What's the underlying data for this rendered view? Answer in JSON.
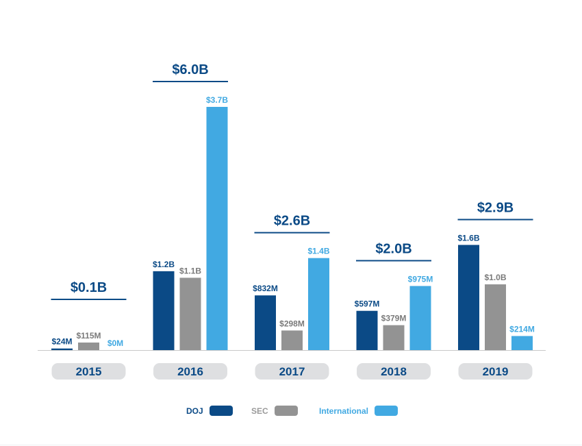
{
  "chart_data": {
    "type": "bar",
    "categories": [
      "2015",
      "2016",
      "2017",
      "2018",
      "2019"
    ],
    "series": [
      {
        "name": "DOJ",
        "color": "#0b4a86",
        "values": [
          24,
          1200,
          832,
          597,
          1600
        ],
        "labels": [
          "$24M",
          "$1.2B",
          "$832M",
          "$597M",
          "$1.6B"
        ]
      },
      {
        "name": "SEC",
        "color": "#939393",
        "values": [
          115,
          1100,
          298,
          379,
          1000
        ],
        "labels": [
          "$115M",
          "$1.1B",
          "$298M",
          "$379M",
          "$1.0B"
        ]
      },
      {
        "name": "International",
        "color": "#41a9e2",
        "values": [
          0,
          3700,
          1400,
          975,
          214
        ],
        "labels": [
          "$0M",
          "$3.7B",
          "$1.4B",
          "$975M",
          "$214M"
        ]
      }
    ],
    "totals": [
      "$0.1B",
      "$6.0B",
      "$2.6B",
      "$2.0B",
      "$2.9B"
    ],
    "total_values": [
      0.1,
      6.0,
      2.6,
      2.0,
      2.9
    ],
    "unit": "$M",
    "ylim": [
      0,
      3700
    ],
    "grid": false,
    "legend_position": "bottom-center",
    "title": "",
    "xlabel": "",
    "ylabel": ""
  },
  "colors": {
    "total_text": "#0b4a86",
    "total_underline": "#0b4a86",
    "category_pill": "#dedfe1",
    "category_text": "#0b4a86",
    "baseline": "#c8c8c8"
  },
  "legend": {
    "items": [
      {
        "label": "DOJ",
        "color": "#0b4a86"
      },
      {
        "label": "SEC",
        "color": "#939393"
      },
      {
        "label": "International",
        "color": "#41a9e2"
      }
    ]
  }
}
